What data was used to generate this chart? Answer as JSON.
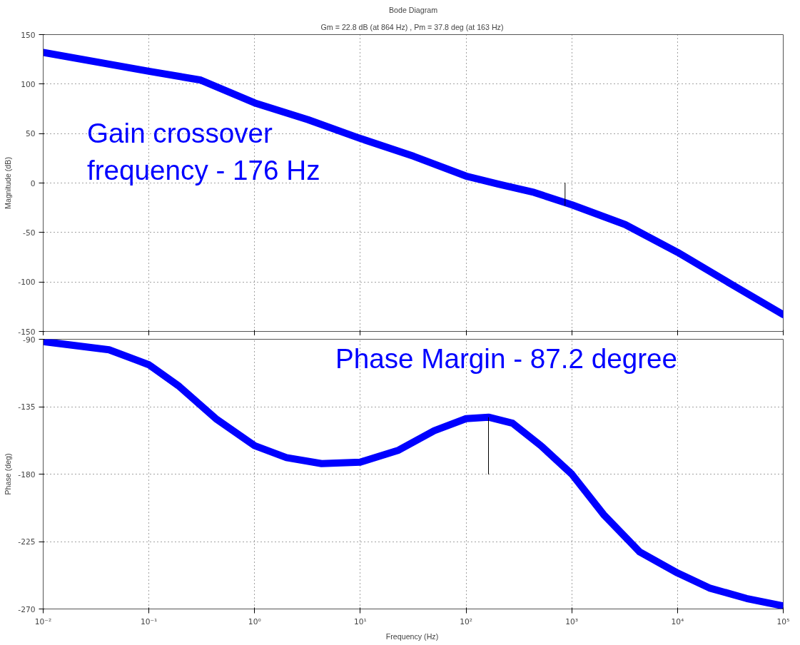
{
  "chart_data": [
    {
      "type": "line",
      "title": "Bode Diagram",
      "subtitle": "Gm = 22.8 dB (at 864 Hz) ,  Pm = 37.8 deg (at 163 Hz)",
      "ylabel": "Magnitude (dB)",
      "log": "x",
      "grid": true,
      "tick_labels": "y",
      "xlim": [
        0.01,
        100000
      ],
      "xticks": [
        {
          "value": 0.01,
          "label": null
        },
        {
          "value": 0.1,
          "label": null
        },
        {
          "value": 1,
          "label": null
        },
        {
          "value": 10,
          "label": null
        },
        {
          "value": 100,
          "label": null
        },
        {
          "value": 1000,
          "label": null
        },
        {
          "value": 10000,
          "label": null
        },
        {
          "value": 100000,
          "label": null
        }
      ],
      "ylim": [
        -150,
        150
      ],
      "yticks": [
        -150,
        -100,
        -50,
        0,
        50,
        100,
        150
      ],
      "annotations": [
        "Gain crossover\nfrequency - 176 Hz"
      ],
      "series": [
        {
          "color": "#0000ff",
          "x": [
            0.01,
            0.1,
            0.31,
            1,
            3.2,
            10,
            32,
            100,
            200,
            440,
            1000,
            3200,
            10000,
            32000,
            100000
          ],
          "values": [
            132,
            113,
            104,
            81,
            64,
            45,
            27,
            7,
            -1,
            -9.5,
            -22,
            -42,
            -70,
            -102,
            -133
          ]
        },
        {
          "color": "#000000",
          "x": [
            864,
            864
          ],
          "values": [
            0,
            -22.8
          ]
        }
      ]
    },
    {
      "type": "line",
      "xlabel": "Frequency  (Hz)",
      "ylabel": "Phase (deg)",
      "log": "x",
      "grid": true,
      "xlim": [
        0.01,
        100000
      ],
      "xticks": [
        {
          "value": 0.01,
          "label": "10⁻²"
        },
        {
          "value": 0.1,
          "label": "10⁻¹"
        },
        {
          "value": 1,
          "label": "10⁰"
        },
        {
          "value": 10,
          "label": "10¹"
        },
        {
          "value": 100,
          "label": "10²"
        },
        {
          "value": 1000,
          "label": "10³"
        },
        {
          "value": 10000,
          "label": "10⁴"
        },
        {
          "value": 100000,
          "label": "10⁵"
        }
      ],
      "ylim": [
        -270,
        -90
      ],
      "yticks": [
        -270,
        -225,
        -180,
        -135,
        -90
      ],
      "annotations": [
        "Phase Margin - 87.2 degree"
      ],
      "series": [
        {
          "color": "#0000ff",
          "x": [
            0.01,
            0.042,
            0.1,
            0.19,
            0.43,
            1,
            2.0,
            4.3,
            10,
            23,
            50,
            100,
            163,
            275,
            510,
            1000,
            2000,
            4400,
            10000,
            20000,
            45000,
            100000
          ],
          "values": [
            -91.5,
            -97,
            -107,
            -121,
            -143,
            -161,
            -169,
            -173,
            -172,
            -164,
            -151,
            -143,
            -142,
            -146,
            -161,
            -180,
            -207,
            -232,
            -246,
            -256,
            -263,
            -268
          ]
        },
        {
          "color": "#000000",
          "x": [
            163,
            163
          ],
          "values": [
            -180,
            -142.2
          ]
        }
      ]
    }
  ]
}
